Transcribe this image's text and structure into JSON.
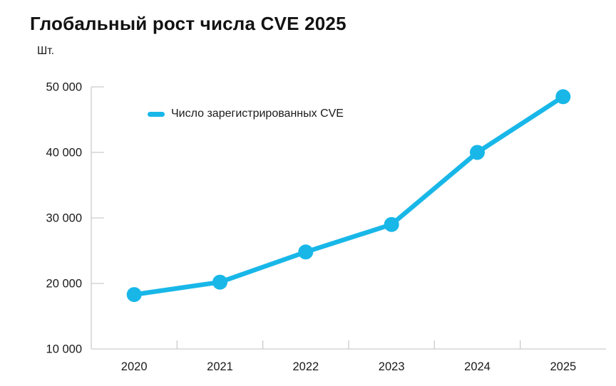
{
  "header": {
    "title": "Глобальный рост числа CVE 2025"
  },
  "axis": {
    "unit_label": "Шт."
  },
  "legend": {
    "label": "Число зарегистрированных CVE"
  },
  "colors": {
    "line": "#18b7e8",
    "axis_line": "#cccccc",
    "label_text": "#1a1a1a",
    "title_text": "#121212",
    "background": "#ffffff"
  },
  "chart_data": {
    "type": "line",
    "title": "Глобальный рост числа CVE 2025",
    "xlabel": "",
    "ylabel": "Шт.",
    "categories": [
      "2020",
      "2021",
      "2022",
      "2023",
      "2024",
      "2025"
    ],
    "series": [
      {
        "name": "Число зарегистрированных CVE",
        "color": "#18b7e8",
        "values": [
          18300,
          20200,
          24800,
          29000,
          40000,
          48500
        ]
      }
    ],
    "ylim": [
      10000,
      50000
    ],
    "y_ticks": {
      "values": [
        10000,
        20000,
        30000,
        40000,
        50000
      ],
      "labels": [
        "10 000",
        "20 000",
        "30 000",
        "40 000",
        "50 000"
      ]
    },
    "grid": false,
    "legend_position": "inside-top-left",
    "marker": "circle"
  }
}
